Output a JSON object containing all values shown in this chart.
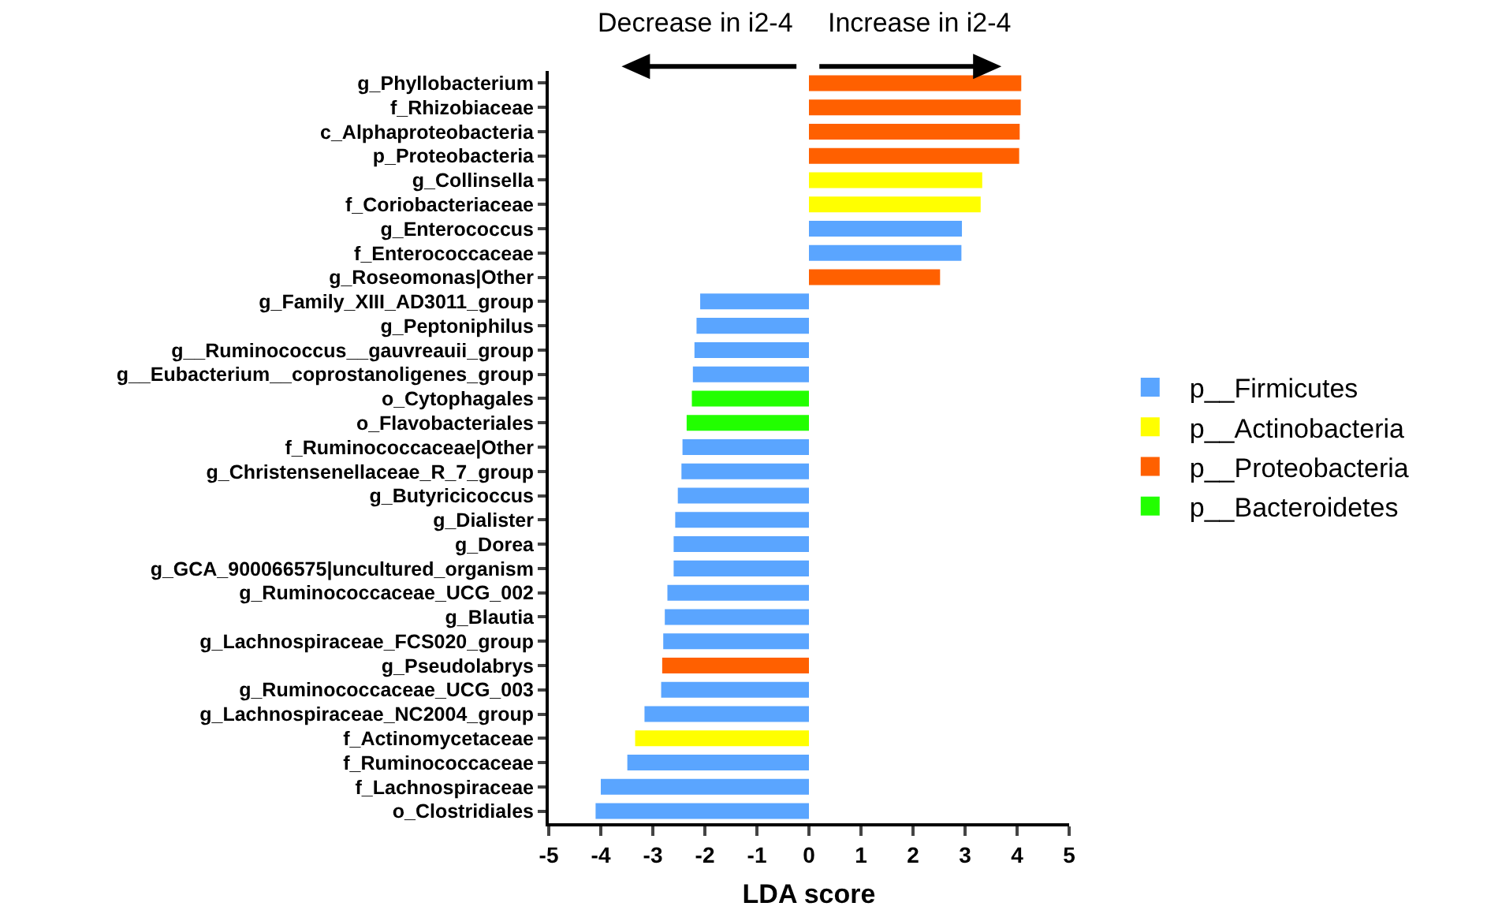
{
  "chart_data": {
    "type": "bar",
    "orientation": "horizontal",
    "xlabel": "LDA score",
    "annotations": [
      "Decrease in i2-4",
      "Increase in i2-4"
    ],
    "categories": [
      "g_Phyllobacterium",
      "f_Rhizobiaceae",
      "c_Alphaproteobacteria",
      "p_Proteobacteria",
      "g_Collinsella",
      "f_Coriobacteriaceae",
      "g_Enterococcus",
      "f_Enterococcaceae",
      "g_Roseomonas|Other",
      "g_Family_XIII_AD3011_group",
      "g_Peptoniphilus",
      "g__Ruminococcus__gauvreauii_group",
      "g__Eubacterium__coprostanoligenes_group",
      "o_Cytophagales",
      "o_Flavobacteriales",
      "f_Ruminococcaceae|Other",
      "g_Christensenellaceae_R_7_group",
      "g_Butyricicoccus",
      "g_Dialister",
      "g_Dorea",
      "g_GCA_900066575|uncultured_organism",
      "g_Ruminococcaceae_UCG_002",
      "g_Blautia",
      "g_Lachnospiraceae_FCS020_group",
      "g_Pseudolabrys",
      "g_Ruminococcaceae_UCG_003",
      "g_Lachnospiraceae_NC2004_group",
      "f_Actinomycetaceae",
      "f_Ruminococcaceae",
      "f_Lachnospiraceae",
      "o_Clostridiales"
    ],
    "series": [
      {
        "name": "p__Firmicutes",
        "color": "#5aa5ff",
        "values": [
          null,
          null,
          null,
          null,
          null,
          null,
          2.94,
          2.93,
          null,
          -2.09,
          -2.16,
          -2.2,
          -2.23,
          null,
          null,
          -2.43,
          -2.45,
          -2.52,
          -2.57,
          -2.6,
          -2.6,
          -2.72,
          -2.77,
          -2.8,
          null,
          -2.84,
          -3.16,
          null,
          -3.49,
          -4.0,
          -4.1
        ]
      },
      {
        "name": "p__Actinobacteria",
        "color": "#ffff00",
        "values": [
          null,
          null,
          null,
          null,
          3.33,
          3.3,
          null,
          null,
          null,
          null,
          null,
          null,
          null,
          null,
          null,
          null,
          null,
          null,
          null,
          null,
          null,
          null,
          null,
          null,
          null,
          null,
          null,
          -3.34,
          null,
          null,
          null
        ]
      },
      {
        "name": "p__Proteobacteria",
        "color": "#ff6000",
        "values": [
          4.08,
          4.07,
          4.05,
          4.04,
          null,
          null,
          null,
          null,
          2.52,
          null,
          null,
          null,
          null,
          null,
          null,
          null,
          null,
          null,
          null,
          null,
          null,
          null,
          null,
          null,
          -2.82,
          null,
          null,
          null,
          null,
          null,
          null
        ]
      },
      {
        "name": "p__Bacteroidetes",
        "color": "#22ff00",
        "values": [
          null,
          null,
          null,
          null,
          null,
          null,
          null,
          null,
          null,
          null,
          null,
          null,
          null,
          -2.25,
          -2.35,
          null,
          null,
          null,
          null,
          null,
          null,
          null,
          null,
          null,
          null,
          null,
          null,
          null,
          null,
          null,
          null
        ]
      }
    ],
    "xlim": [
      -5,
      5
    ],
    "xticks": [
      -5,
      -4,
      -3,
      -2,
      -1,
      0,
      1,
      2,
      3,
      4,
      5
    ],
    "grid": false,
    "legend": "right"
  }
}
